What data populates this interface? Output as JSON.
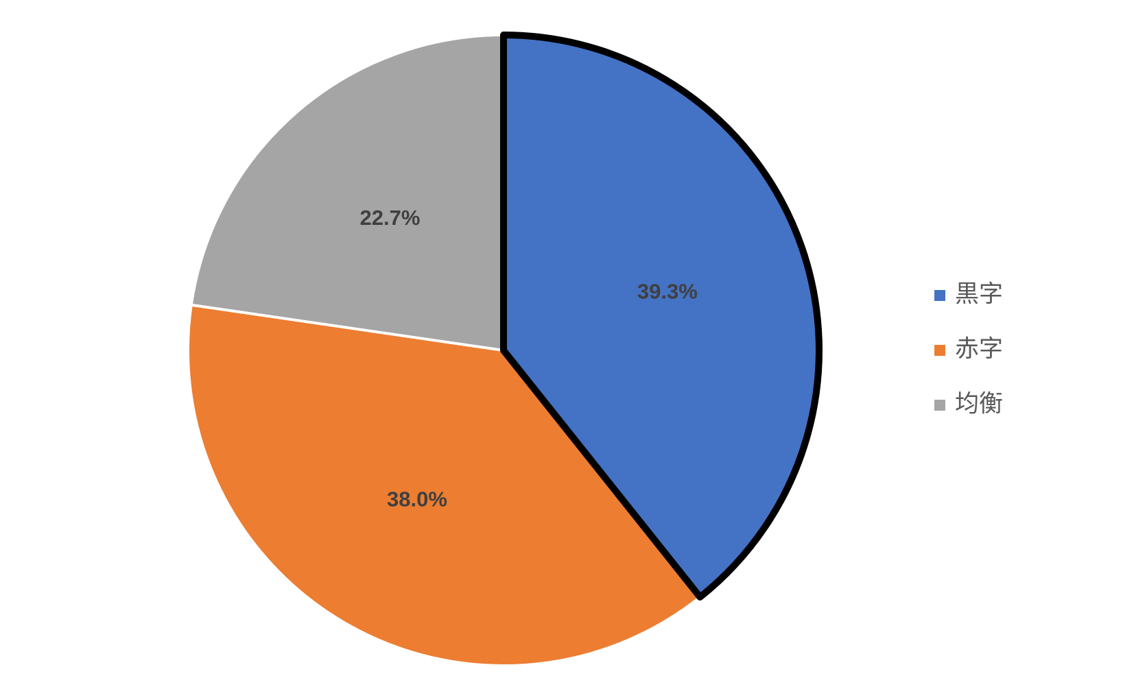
{
  "chart_data": {
    "type": "pie",
    "categories": [
      "黒字",
      "赤字",
      "均衡"
    ],
    "values": [
      39.3,
      38.0,
      22.7
    ],
    "value_labels": [
      "39.3%",
      "38.0%",
      "22.7%"
    ],
    "colors": [
      "#4472c4",
      "#ed7d31",
      "#a5a5a5"
    ],
    "legend": "right"
  }
}
